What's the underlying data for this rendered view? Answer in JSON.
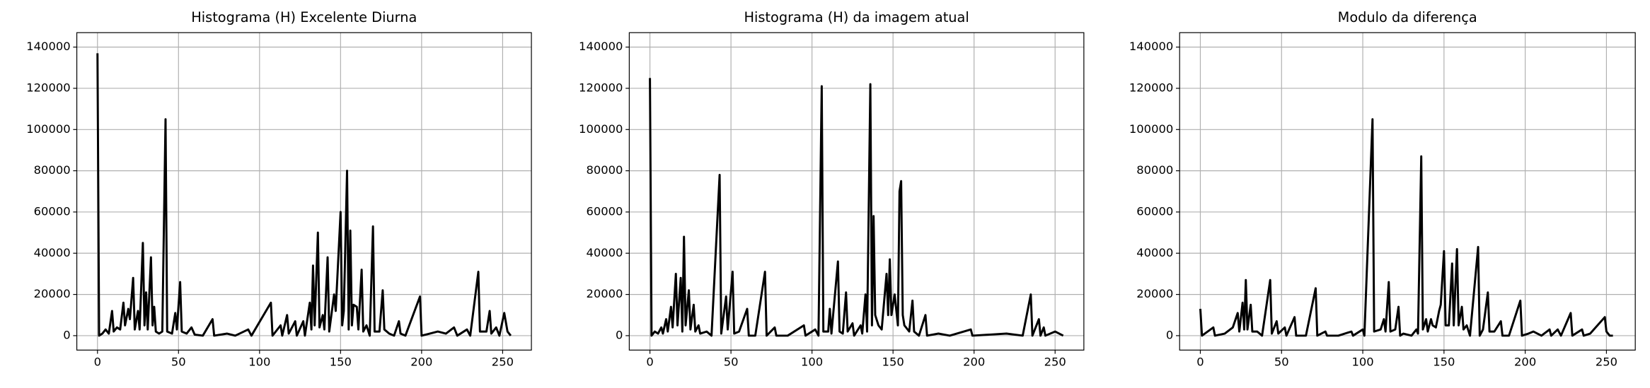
{
  "chart_data": [
    {
      "type": "line",
      "title": "Histograma (H) Excelente Diurna",
      "color": "#000000",
      "grid": true,
      "xlim": [
        -12.75,
        267.75
      ],
      "xticks": [
        0,
        50,
        100,
        150,
        200,
        250
      ],
      "ylim": [
        -7000,
        147000
      ],
      "yticks": [
        0,
        20000,
        40000,
        60000,
        80000,
        100000,
        120000,
        140000
      ],
      "x": [
        0,
        1,
        3,
        5,
        7,
        9,
        10,
        12,
        14,
        16,
        17,
        19,
        20,
        22,
        23,
        25,
        26,
        28,
        29,
        30,
        31,
        33,
        34,
        35,
        36,
        38,
        40,
        42,
        43,
        46,
        48,
        49,
        51,
        52,
        55,
        58,
        60,
        65,
        71,
        72,
        80,
        85,
        93,
        95,
        107,
        108,
        113,
        114,
        117,
        118,
        122,
        123,
        127,
        128,
        131,
        132,
        133,
        134,
        136,
        137,
        139,
        140,
        142,
        143,
        146,
        147,
        150,
        151,
        152,
        154,
        155,
        156,
        157,
        158,
        160,
        161,
        163,
        164,
        166,
        168,
        170,
        171,
        174,
        176,
        177,
        180,
        183,
        186,
        187,
        190,
        199,
        200,
        205,
        210,
        215,
        220,
        222,
        228,
        230,
        235,
        236,
        240,
        242,
        243,
        246,
        248,
        251,
        253,
        255
      ],
      "values": [
        137000,
        0,
        1000,
        3000,
        1000,
        12000,
        2000,
        4000,
        3000,
        16000,
        5000,
        13000,
        8000,
        28000,
        3000,
        12000,
        3000,
        45000,
        5000,
        21000,
        3000,
        38000,
        5000,
        14000,
        2000,
        1000,
        2000,
        105000,
        2000,
        1000,
        11000,
        3000,
        26000,
        2000,
        1000,
        4000,
        500,
        0,
        8000,
        0,
        1000,
        0,
        3000,
        0,
        16000,
        0,
        5000,
        0,
        10000,
        1000,
        7000,
        0,
        7000,
        0,
        16000,
        3000,
        34000,
        5000,
        50000,
        4000,
        10000,
        3000,
        38000,
        2000,
        20000,
        12000,
        60000,
        5000,
        12000,
        80000,
        3000,
        51000,
        5000,
        15000,
        14000,
        3000,
        32000,
        2000,
        5000,
        0,
        53000,
        2000,
        2000,
        22000,
        3000,
        1000,
        0,
        7000,
        1000,
        0,
        19000,
        0,
        1000,
        2000,
        1000,
        4000,
        0,
        3000,
        0,
        31000,
        2000,
        2000,
        12000,
        1000,
        4000,
        0,
        11000,
        2000,
        0
      ]
    },
    {
      "type": "line",
      "title": "Histograma (H) da imagem atual",
      "color": "#000000",
      "grid": true,
      "xlim": [
        -12.75,
        267.75
      ],
      "xticks": [
        0,
        50,
        100,
        150,
        200,
        250
      ],
      "ylim": [
        -7000,
        147000
      ],
      "yticks": [
        0,
        20000,
        40000,
        60000,
        80000,
        100000,
        120000,
        140000
      ],
      "x": [
        0,
        1,
        3,
        5,
        7,
        8,
        10,
        11,
        13,
        14,
        16,
        17,
        19,
        20,
        21,
        22,
        24,
        25,
        27,
        28,
        30,
        31,
        35,
        38,
        43,
        44,
        47,
        48,
        51,
        52,
        55,
        60,
        61,
        65,
        71,
        72,
        77,
        78,
        85,
        95,
        96,
        102,
        104,
        106,
        107,
        110,
        111,
        112,
        116,
        117,
        119,
        121,
        122,
        125,
        126,
        130,
        131,
        133,
        134,
        136,
        137,
        138,
        139,
        141,
        143,
        146,
        147,
        148,
        149,
        151,
        153,
        154,
        155,
        156,
        157,
        160,
        162,
        163,
        166,
        170,
        171,
        178,
        185,
        198,
        199,
        220,
        230,
        235,
        236,
        240,
        241,
        243,
        244,
        250,
        255
      ],
      "values": [
        125000,
        0,
        2000,
        1000,
        4000,
        1000,
        8000,
        2000,
        14000,
        4000,
        30000,
        5000,
        28000,
        2000,
        48000,
        5000,
        22000,
        3000,
        15000,
        2000,
        5000,
        1000,
        2000,
        0,
        78000,
        1000,
        19000,
        3000,
        31000,
        1000,
        2000,
        13000,
        0,
        0,
        31000,
        0,
        4000,
        0,
        0,
        5000,
        0,
        3000,
        0,
        121000,
        2000,
        2000,
        13000,
        1000,
        36000,
        2000,
        1000,
        21000,
        2000,
        6000,
        0,
        5000,
        1000,
        20000,
        2000,
        122000,
        5000,
        58000,
        10000,
        5000,
        3000,
        30000,
        10000,
        37000,
        10000,
        20000,
        5000,
        70000,
        75000,
        10000,
        5000,
        2000,
        17000,
        2000,
        0,
        10000,
        0,
        1000,
        0,
        3000,
        0,
        1000,
        0,
        20000,
        0,
        8000,
        0,
        4000,
        0,
        2000,
        0
      ]
    },
    {
      "type": "line",
      "title": "Modulo da diferença",
      "color": "#000000",
      "grid": true,
      "xlim": [
        -12.75,
        267.75
      ],
      "xticks": [
        0,
        50,
        100,
        150,
        200,
        250
      ],
      "ylim": [
        -7000,
        147000
      ],
      "yticks": [
        0,
        20000,
        40000,
        60000,
        80000,
        100000,
        120000,
        140000
      ],
      "x": [
        0,
        1,
        8,
        9,
        15,
        20,
        23,
        24,
        26,
        27,
        28,
        29,
        31,
        32,
        35,
        38,
        43,
        44,
        47,
        48,
        52,
        53,
        58,
        59,
        65,
        71,
        72,
        77,
        78,
        85,
        93,
        94,
        100,
        101,
        106,
        107,
        111,
        113,
        114,
        116,
        117,
        120,
        122,
        123,
        125,
        130,
        133,
        134,
        136,
        137,
        139,
        140,
        142,
        143,
        145,
        147,
        148,
        150,
        151,
        153,
        155,
        156,
        158,
        159,
        161,
        162,
        164,
        166,
        171,
        172,
        174,
        177,
        178,
        181,
        185,
        186,
        190,
        197,
        198,
        202,
        205,
        210,
        215,
        216,
        220,
        222,
        228,
        229,
        235,
        236,
        240,
        249,
        250,
        252,
        254
      ],
      "values": [
        13000,
        0,
        4000,
        0,
        1000,
        4000,
        11000,
        2000,
        16000,
        3000,
        27000,
        3000,
        15000,
        2000,
        2000,
        0,
        27000,
        1000,
        7000,
        1000,
        4000,
        0,
        9000,
        0,
        0,
        23000,
        0,
        2000,
        0,
        0,
        2000,
        0,
        3000,
        0,
        105000,
        2000,
        3000,
        8000,
        2000,
        26000,
        2000,
        3000,
        14000,
        0,
        1000,
        0,
        3000,
        1000,
        87000,
        3000,
        8000,
        2000,
        8000,
        5000,
        4000,
        12000,
        15000,
        41000,
        5000,
        5000,
        35000,
        5000,
        42000,
        5000,
        14000,
        3000,
        5000,
        0,
        43000,
        0,
        3000,
        21000,
        2000,
        2000,
        7000,
        0,
        0,
        17000,
        0,
        1000,
        2000,
        0,
        3000,
        0,
        3000,
        0,
        11000,
        0,
        3000,
        0,
        1000,
        9000,
        2000,
        0,
        0
      ]
    }
  ]
}
